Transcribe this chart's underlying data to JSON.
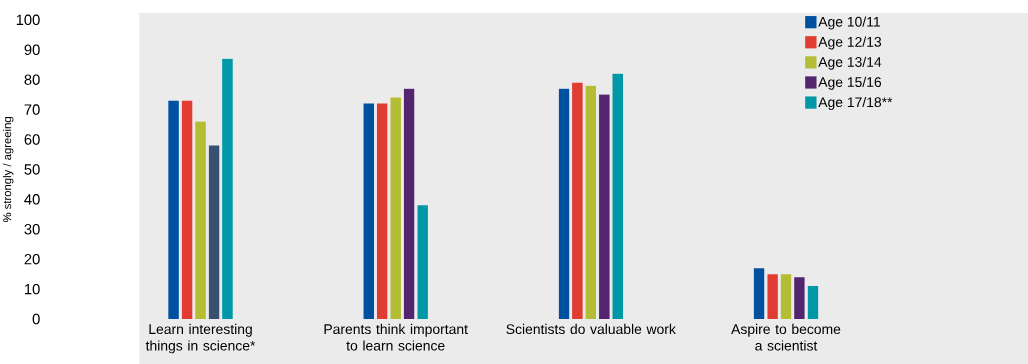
{
  "chart_data": {
    "type": "bar",
    "ylabel": "% strongly / agreeing",
    "categories": [
      "Learn interesting things in science*",
      "Parents think important to learn science",
      "Scientists do valuable work",
      "Aspire to become a scientist"
    ],
    "series": [
      {
        "name": "Age 10/11",
        "color": "#0050a0",
        "values": [
          73,
          72,
          77,
          17
        ]
      },
      {
        "name": "Age 12/13",
        "color": "#e03c31",
        "values": [
          73,
          72,
          79,
          15
        ]
      },
      {
        "name": "Age 13/14",
        "color": "#b5bd35",
        "values": [
          66,
          74,
          78,
          15
        ]
      },
      {
        "name": "Age 15/16",
        "color": "#52256e",
        "colors": [
          "#3a5070",
          "#52256e",
          "#52256e",
          "#52256e"
        ],
        "values": [
          58,
          77,
          75,
          14
        ]
      },
      {
        "name": "Age 17/18**",
        "color": "#0097a7",
        "values": [
          87,
          38,
          82,
          11
        ]
      }
    ],
    "ylim": [
      0,
      100
    ],
    "yticks": [
      0,
      10,
      20,
      30,
      40,
      50,
      60,
      70,
      80,
      90,
      100
    ],
    "grid": false,
    "legend": "top right"
  }
}
